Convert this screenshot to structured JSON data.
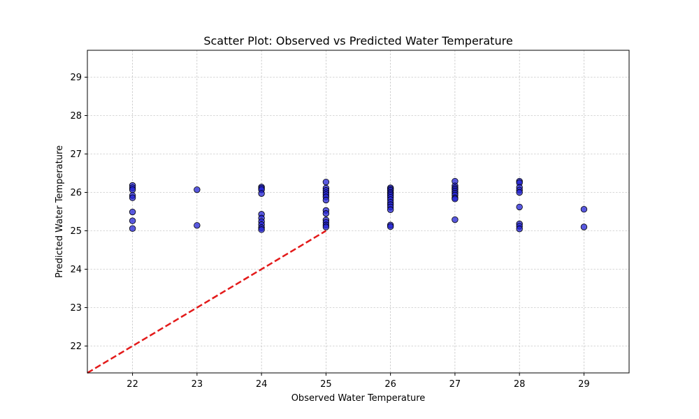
{
  "chart_data": {
    "type": "scatter",
    "title": "Scatter Plot: Observed vs Predicted Water Temperature",
    "xlabel": "Observed Water Temperature",
    "ylabel": "Predicted Water Temperature",
    "xlim": [
      21.3,
      29.7
    ],
    "ylim": [
      21.3,
      29.7
    ],
    "xticks": [
      22,
      23,
      24,
      25,
      26,
      27,
      28,
      29
    ],
    "yticks": [
      22,
      23,
      24,
      25,
      26,
      27,
      28,
      29
    ],
    "grid": true,
    "colors": {
      "point_fill": "#2323d6",
      "point_edge": "#000000",
      "reference_line": "#e31a1a",
      "grid": "#b0b0b0"
    },
    "reference_line": {
      "style": "dashed",
      "x": [
        21.3,
        25
      ],
      "y": [
        21.3,
        25
      ]
    },
    "series": [
      {
        "points": [
          [
            22,
            26.18
          ],
          [
            22,
            26.12
          ],
          [
            22,
            26.07
          ],
          [
            22,
            25.92
          ],
          [
            22,
            25.86
          ],
          [
            22,
            25.49
          ],
          [
            22,
            25.26
          ],
          [
            22,
            25.06
          ],
          [
            23,
            26.07
          ],
          [
            23,
            25.14
          ],
          [
            24,
            26.14
          ],
          [
            24,
            26.11
          ],
          [
            24,
            26.07
          ],
          [
            24,
            25.97
          ],
          [
            24,
            25.43
          ],
          [
            24,
            25.33
          ],
          [
            24,
            25.24
          ],
          [
            24,
            25.16
          ],
          [
            24,
            25.08
          ],
          [
            24,
            25.03
          ],
          [
            25,
            26.27
          ],
          [
            25,
            26.11
          ],
          [
            25,
            26.05
          ],
          [
            25,
            25.99
          ],
          [
            25,
            25.94
          ],
          [
            25,
            25.88
          ],
          [
            25,
            25.8
          ],
          [
            25,
            25.53
          ],
          [
            25,
            25.45
          ],
          [
            25,
            25.28
          ],
          [
            25,
            25.22
          ],
          [
            25,
            25.15
          ],
          [
            25,
            25.1
          ],
          [
            26,
            26.12
          ],
          [
            26,
            26.09
          ],
          [
            26,
            26.05
          ],
          [
            26,
            26.0
          ],
          [
            26,
            25.96
          ],
          [
            26,
            25.92
          ],
          [
            26,
            25.87
          ],
          [
            26,
            25.81
          ],
          [
            26,
            25.74
          ],
          [
            26,
            25.68
          ],
          [
            26,
            25.62
          ],
          [
            26,
            25.55
          ],
          [
            26,
            25.15
          ],
          [
            26,
            25.11
          ],
          [
            27,
            26.29
          ],
          [
            27,
            26.17
          ],
          [
            27,
            26.12
          ],
          [
            27,
            26.08
          ],
          [
            27,
            26.03
          ],
          [
            27,
            25.98
          ],
          [
            27,
            25.93
          ],
          [
            27,
            25.86
          ],
          [
            27,
            25.83
          ],
          [
            27,
            25.29
          ],
          [
            28,
            26.29
          ],
          [
            28,
            26.25
          ],
          [
            28,
            26.13
          ],
          [
            28,
            26.06
          ],
          [
            28,
            26.0
          ],
          [
            28,
            25.62
          ],
          [
            28,
            25.18
          ],
          [
            28,
            25.12
          ],
          [
            28,
            25.05
          ],
          [
            29,
            25.56
          ],
          [
            29,
            25.1
          ]
        ]
      }
    ]
  }
}
